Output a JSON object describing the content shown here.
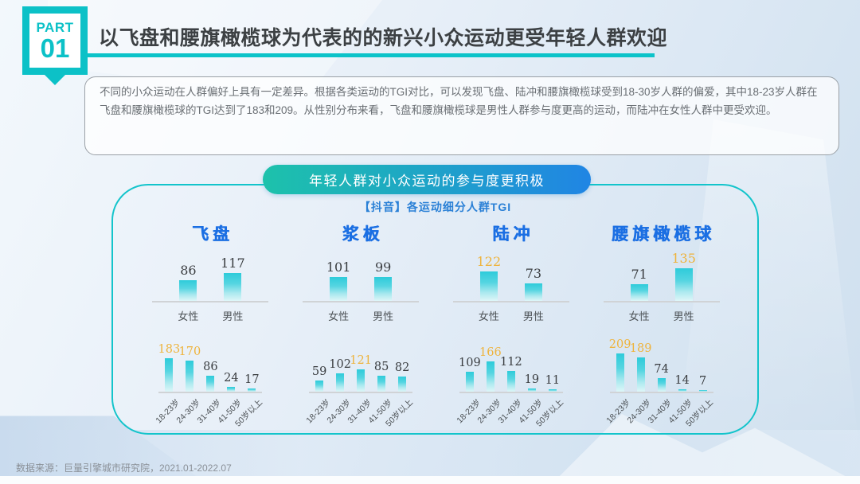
{
  "badge": {
    "part_label": "PART",
    "number": "01"
  },
  "header": {
    "title": "以飞盘和腰旗橄榄球为代表的的新兴小众运动更受年轻人群欢迎"
  },
  "summary": {
    "text": "不同的小众运动在人群偏好上具有一定差异。根据各类运动的TGI对比，可以发现飞盘、陆冲和腰旗橄榄球受到18-30岁人群的偏爱，其中18-23岁人群在飞盘和腰旗橄榄球的TGI达到了183和209。从性别分布来看，飞盘和腰旗橄榄球是男性人群参与度更高的运动，而陆冲在女性人群中更受欢迎。"
  },
  "banner": {
    "label": "年轻人群对小众运动的参与度更积极"
  },
  "chart_section": {
    "subtitle": "【抖音】各运动细分人群TGI"
  },
  "chart_data": {
    "type": "bar",
    "title": "【抖音】各运动细分人群TGI",
    "gender_categories": [
      "女性",
      "男性"
    ],
    "age_categories": [
      "18-23岁",
      "24-30岁",
      "31-40岁",
      "41-50岁",
      "50岁以上"
    ],
    "sports": [
      {
        "name": "飞盘",
        "gender": [
          86,
          117
        ],
        "gold_gender": [],
        "age": [
          183,
          170,
          86,
          24,
          17
        ],
        "gold_age": [
          0,
          1
        ]
      },
      {
        "name": "浆板",
        "gender": [
          101,
          99
        ],
        "gold_gender": [],
        "age": [
          59,
          102,
          121,
          85,
          82
        ],
        "gold_age": [
          2
        ]
      },
      {
        "name": "陆冲",
        "gender": [
          122,
          73
        ],
        "gold_gender": [
          0
        ],
        "age": [
          109,
          166,
          112,
          19,
          11
        ],
        "gold_age": [
          1
        ]
      },
      {
        "name": "腰旗橄榄球",
        "gender": [
          71,
          135
        ],
        "gold_gender": [
          1
        ],
        "age": [
          209,
          189,
          74,
          14,
          7
        ],
        "gold_age": [
          0,
          1
        ]
      }
    ],
    "legend_position": "none",
    "grid": false
  },
  "footer": {
    "source": "数据来源：巨量引擎城市研究院，2021.01-2022.07"
  },
  "colors": {
    "accent_teal": "#0cc1c7",
    "accent_blue": "#2085e4",
    "sport_title_blue": "#1b6fe3",
    "subtitle_blue": "#2a80d6",
    "highlight_gold": "#eeb33c",
    "bar_top": "#2ecbda",
    "bar_bottom": "#def6f8"
  }
}
